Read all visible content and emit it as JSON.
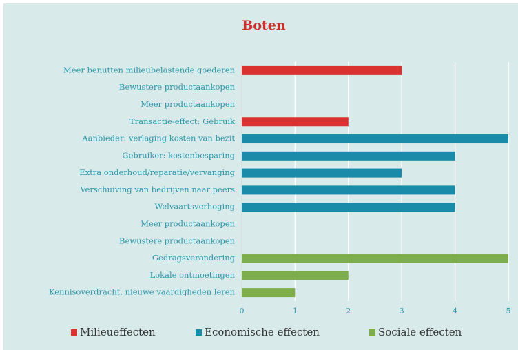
{
  "chart_data": {
    "type": "bar",
    "orientation": "horizontal",
    "title": "Boten",
    "categories": [
      "Meer benutten milieubelastende goederen",
      "Bewustere productaankopen",
      "Meer productaankopen",
      "Transactie-effect: Gebruik",
      "Aanbieder: verlaging kosten van bezit",
      "Gebruiker: kostenbesparing",
      "Extra onderhoud/reparatie/vervanging",
      "Verschuiving van bedrijven naar peers",
      "Welvaartsverhoging",
      "Meer productaankopen",
      "Bewustere productaankopen",
      "Gedragsverandering",
      "Lokale ontmoetingen",
      "Kennisoverdracht, nieuwe vaardigheden leren"
    ],
    "series": [
      {
        "name": "Milieueffecten",
        "color": "#d9322f",
        "values": [
          3,
          0,
          0,
          2,
          null,
          null,
          null,
          null,
          null,
          null,
          null,
          null,
          null,
          null
        ]
      },
      {
        "name": "Economische effecten",
        "color": "#1a8ba8",
        "values": [
          null,
          null,
          null,
          null,
          5,
          4,
          3,
          4,
          4,
          null,
          null,
          null,
          null,
          null
        ]
      },
      {
        "name": "Sociale effecten",
        "color": "#7dae4b",
        "values": [
          null,
          null,
          null,
          null,
          null,
          null,
          null,
          null,
          null,
          0,
          0,
          5,
          2,
          1
        ]
      }
    ],
    "xlim": [
      0,
      5
    ],
    "xticks": [
      0,
      1,
      2,
      3,
      4,
      5
    ],
    "grid": true,
    "legend": "bottom"
  }
}
